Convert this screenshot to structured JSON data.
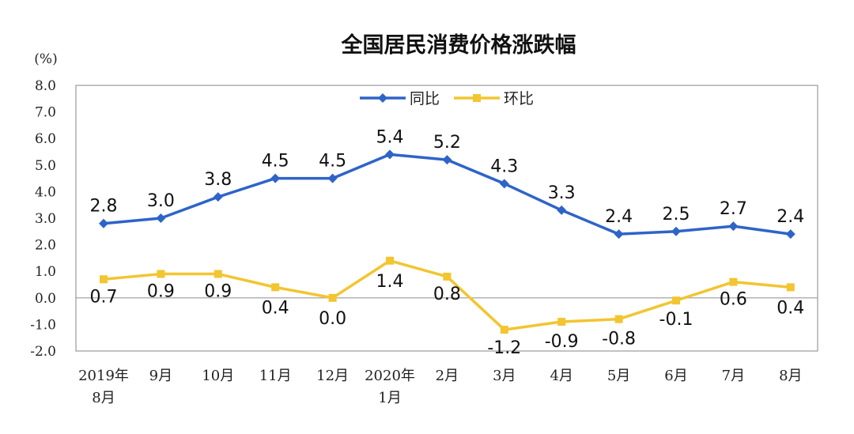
{
  "chart_data": {
    "type": "line",
    "title": "全国居民消费价格涨跌幅",
    "unit_label": "(%)",
    "ylim": [
      -2.0,
      8.0
    ],
    "yticks": [
      "8.0",
      "7.0",
      "6.0",
      "5.0",
      "4.0",
      "3.0",
      "2.0",
      "1.0",
      "0.0",
      "-1.0",
      "-2.0"
    ],
    "categories": [
      [
        "2019年",
        "8月"
      ],
      [
        "9月"
      ],
      [
        "10月"
      ],
      [
        "11月"
      ],
      [
        "12月"
      ],
      [
        "2020年",
        "1月"
      ],
      [
        "2月"
      ],
      [
        "3月"
      ],
      [
        "4月"
      ],
      [
        "5月"
      ],
      [
        "6月"
      ],
      [
        "7月"
      ],
      [
        "8月"
      ]
    ],
    "legend_position": "top-center",
    "grid": false,
    "series": [
      {
        "name": "同比",
        "color": "#2e64c8",
        "marker": "diamond",
        "values": [
          2.8,
          3.0,
          3.8,
          4.5,
          4.5,
          5.4,
          5.2,
          4.3,
          3.3,
          2.4,
          2.5,
          2.7,
          2.4
        ],
        "labels": [
          "2.8",
          "3.0",
          "3.8",
          "4.5",
          "4.5",
          "5.4",
          "5.2",
          "4.3",
          "3.3",
          "2.4",
          "2.5",
          "2.7",
          "2.4"
        ]
      },
      {
        "name": "环比",
        "color": "#f2c531",
        "marker": "square",
        "values": [
          0.7,
          0.9,
          0.9,
          0.4,
          0.0,
          1.4,
          0.8,
          -1.2,
          -0.9,
          -0.8,
          -0.1,
          0.6,
          0.4
        ],
        "labels": [
          "0.7",
          "0.9",
          "0.9",
          "0.4",
          "0.0",
          "1.4",
          "0.8",
          "-1.2",
          "-0.9",
          "-0.8",
          "-0.1",
          "0.6",
          "0.4"
        ]
      }
    ]
  }
}
